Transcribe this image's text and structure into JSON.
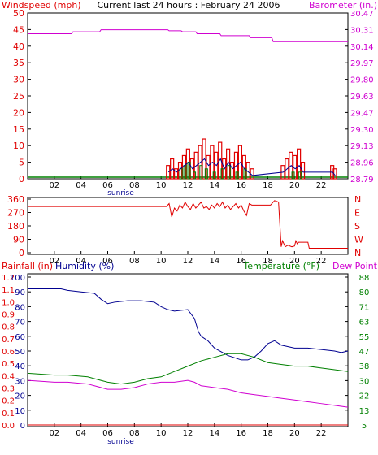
{
  "title": "Current last 24 hours : February 24 2006",
  "colors": {
    "red": "#e00000",
    "magenta": "#d000d0",
    "blue": "#000090",
    "green": "#008000",
    "darkred": "#900000",
    "frame": "#000000",
    "grid": "#e8e8e8"
  },
  "chart_data": [
    {
      "type": "line",
      "name": "wind-barometer",
      "left_label": "Windspeed (mph)",
      "right_label": "Barometer (in.)",
      "x_ticks": [
        "02",
        "04",
        "06",
        "08",
        "10",
        "12",
        "14",
        "16",
        "18",
        "20",
        "22"
      ],
      "x_note": "sunrise",
      "xlim": [
        0,
        24
      ],
      "y_left_ticks": [
        "0",
        "5",
        "10",
        "15",
        "20",
        "25",
        "30",
        "35",
        "40",
        "45",
        "50"
      ],
      "y_left_lim": [
        0,
        50
      ],
      "y_right_ticks": [
        "28.79",
        "28.96",
        "29.13",
        "29.30",
        "29.47",
        "29.63",
        "29.80",
        "29.97",
        "30.14",
        "30.31",
        "30.47"
      ],
      "y_right_lim": [
        28.79,
        30.47
      ],
      "barometer": {
        "x": [
          0,
          3.3,
          3.4,
          5.4,
          5.5,
          10.5,
          10.6,
          11.5,
          11.6,
          12.6,
          12.7,
          14.4,
          14.5,
          16.6,
          16.7,
          18.3,
          18.4,
          24
        ],
        "y": [
          30.26,
          30.26,
          30.28,
          30.28,
          30.3,
          30.3,
          30.29,
          30.29,
          30.28,
          30.28,
          30.26,
          30.26,
          30.24,
          30.24,
          30.22,
          30.22,
          30.18,
          30.18
        ]
      },
      "wind_bars": {
        "x": [
          10.4,
          10.7,
          11.0,
          11.3,
          11.6,
          11.9,
          12.2,
          12.5,
          12.8,
          13.1,
          13.4,
          13.7,
          14.0,
          14.3,
          14.6,
          14.9,
          15.2,
          15.5,
          15.8,
          16.1,
          16.4,
          16.7,
          19.0,
          19.3,
          19.6,
          19.9,
          20.2,
          20.5,
          22.7,
          22.9
        ],
        "gust": [
          4,
          6,
          3,
          5,
          7,
          9,
          6,
          8,
          10,
          12,
          7,
          10,
          8,
          11,
          6,
          9,
          5,
          8,
          10,
          7,
          5,
          3,
          4,
          6,
          8,
          7,
          9,
          5,
          4,
          3
        ],
        "avg": [
          2,
          3,
          2,
          3,
          4,
          5,
          3,
          4,
          5,
          6,
          4,
          5,
          4,
          6,
          3,
          5,
          3,
          4,
          5,
          3,
          2,
          1,
          2,
          3,
          4,
          3,
          4,
          2,
          2,
          1
        ]
      },
      "wind_green_bars": {
        "x": [
          11.4,
          11.7,
          12.0,
          12.4,
          12.9,
          13.3,
          13.9,
          14.5,
          15.0,
          15.6,
          16.2,
          19.8,
          20.3
        ],
        "values": [
          3,
          4,
          5,
          2,
          4,
          3,
          2,
          3,
          4,
          2,
          3,
          2,
          2
        ]
      }
    },
    {
      "type": "line",
      "name": "wind-direction",
      "right_label": [
        "N",
        "W",
        "S",
        "E",
        "N"
      ],
      "y_left_ticks": [
        "0",
        "90",
        "180",
        "270",
        "360"
      ],
      "ylim": [
        0,
        360
      ],
      "x": [
        0,
        10.4,
        10.6,
        10.8,
        11.0,
        11.2,
        11.4,
        11.6,
        11.8,
        12.0,
        12.2,
        12.4,
        12.6,
        12.8,
        13.0,
        13.2,
        13.4,
        13.6,
        13.8,
        14.0,
        14.2,
        14.4,
        14.6,
        14.8,
        15.0,
        15.2,
        15.4,
        15.6,
        15.8,
        16.0,
        16.2,
        16.4,
        16.6,
        16.8,
        17.0,
        17.2,
        17.5,
        18.2,
        18.5,
        18.8,
        19.0,
        19.1,
        19.3,
        19.5,
        19.8,
        20.0,
        20.1,
        20.2,
        20.3,
        20.8,
        21.0,
        21.1,
        22.0,
        23.0,
        24.0
      ],
      "y": [
        310,
        310,
        330,
        240,
        300,
        280,
        320,
        300,
        340,
        310,
        290,
        330,
        300,
        320,
        340,
        300,
        310,
        290,
        320,
        300,
        330,
        310,
        340,
        300,
        320,
        290,
        310,
        330,
        300,
        320,
        280,
        250,
        330,
        320,
        320,
        320,
        320,
        320,
        350,
        340,
        40,
        80,
        40,
        50,
        40,
        45,
        80,
        60,
        70,
        70,
        70,
        30,
        30,
        30,
        30
      ]
    },
    {
      "type": "line",
      "name": "rain-humidity-temperature",
      "label_rain": "Rainfall (in)",
      "label_humidity": "Humidity (%)",
      "label_temperature": "Temperature (°F)",
      "label_dewpoint": "Dew Point",
      "y_rain_ticks": [
        "0.0",
        "0.1",
        "0.2",
        "0.3",
        "0.4",
        "0.5",
        "0.6",
        "0.7",
        "0.8",
        "0.9",
        "1.0",
        "1.1",
        "1.2"
      ],
      "y_rain_lim": [
        0,
        1.2
      ],
      "y_humidity_ticks": [
        "0",
        "10",
        "20",
        "30",
        "40",
        "50",
        "60",
        "70",
        "80",
        "90",
        "100"
      ],
      "y_humidity_lim": [
        0,
        100
      ],
      "y_temp_ticks": [
        "5",
        "13",
        "22",
        "30",
        "38",
        "47",
        "55",
        "63",
        "71",
        "80",
        "88"
      ],
      "y_temp_lim": [
        5,
        88
      ],
      "humidity": {
        "x": [
          0,
          2.5,
          3.0,
          4.0,
          5.0,
          5.5,
          6.0,
          6.5,
          7.5,
          8.5,
          9.5,
          10.0,
          10.5,
          11.0,
          12.0,
          12.5,
          12.8,
          13.0,
          13.5,
          14.0,
          15.0,
          16.0,
          16.5,
          17.0,
          17.5,
          18.0,
          18.5,
          19.0,
          20.0,
          21.0,
          22.0,
          23.0,
          23.5,
          24.0
        ],
        "y": [
          92,
          92,
          91,
          90,
          89,
          85,
          82,
          83,
          84,
          84,
          83,
          80,
          78,
          77,
          78,
          72,
          63,
          60,
          57,
          52,
          47,
          44,
          44,
          46,
          50,
          55,
          57,
          54,
          52,
          52,
          51,
          50,
          49,
          50
        ]
      },
      "temperature": {
        "x": [
          0,
          2.0,
          3.0,
          4.5,
          5.0,
          6.0,
          7.0,
          8.0,
          9.0,
          10.0,
          11.0,
          12.0,
          13.0,
          14.0,
          15.0,
          16.0,
          17.0,
          18.0,
          19.0,
          20.0,
          21.0,
          22.0,
          23.0,
          24.0
        ],
        "y": [
          34,
          33,
          33,
          32,
          31,
          29,
          28,
          29,
          31,
          32,
          35,
          38,
          41,
          43,
          45,
          45,
          43,
          40,
          39,
          38,
          38,
          37,
          36,
          35
        ]
      },
      "dewpoint": {
        "x": [
          0,
          2.0,
          3.0,
          4.5,
          5.0,
          6.0,
          7.0,
          8.0,
          9.0,
          10.0,
          11.0,
          12.0,
          12.5,
          13.0,
          14.0,
          15.0,
          16.0,
          17.0,
          18.0,
          19.0,
          20.0,
          21.0,
          22.0,
          23.0,
          24.0
        ],
        "y": [
          30,
          29,
          29,
          28,
          27,
          25,
          25,
          26,
          28,
          29,
          29,
          30,
          29,
          27,
          26,
          25,
          23,
          22,
          21,
          20,
          19,
          18,
          17,
          16,
          15
        ]
      },
      "rainfall": {
        "x": [
          0,
          24
        ],
        "y": [
          0,
          0
        ]
      }
    }
  ]
}
